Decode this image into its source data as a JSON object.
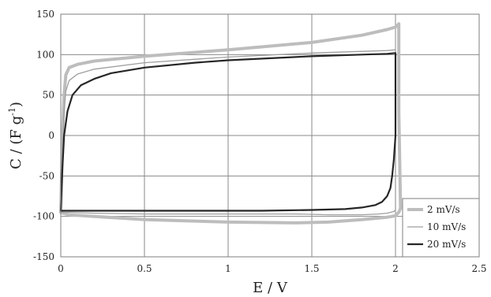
{
  "chart_data": {
    "type": "line",
    "xlabel": "E / V",
    "ylabel_main": "C / (F g",
    "ylabel_sup": "-1",
    "ylabel_close": ")",
    "xlim": [
      0,
      2.5
    ],
    "ylim": [
      -150,
      150
    ],
    "xticks": [
      0,
      0.5,
      1,
      1.5,
      2,
      2.5
    ],
    "xtick_labels": [
      "0",
      "0.5",
      "1",
      "1.5",
      "2",
      "2.5"
    ],
    "yticks": [
      -150,
      -100,
      -50,
      0,
      50,
      100,
      150
    ],
    "ytick_labels": [
      "-150",
      "-100",
      "-50",
      "0",
      "50",
      "100",
      "150"
    ],
    "grid": true,
    "legend_position": "bottom-right",
    "series": [
      {
        "name": "2 mV/s",
        "color": "#bdbdbd",
        "x": [
          0.0,
          0.01,
          0.02,
          0.03,
          0.05,
          0.1,
          0.2,
          0.5,
          1.0,
          1.5,
          1.8,
          1.95,
          2.0,
          2.02,
          2.02,
          2.03,
          2.02,
          2.01,
          2.0,
          1.98,
          1.95,
          1.9,
          1.8,
          1.6,
          1.4,
          1.0,
          0.5,
          0.2,
          0.05,
          0.01,
          0.0,
          0.0
        ],
        "y": [
          -95,
          0,
          50,
          75,
          84,
          88,
          92,
          98,
          106,
          115,
          124,
          131,
          134,
          138,
          30,
          -90,
          -95,
          -97,
          -99,
          -100,
          -101,
          -102,
          -104,
          -107,
          -108,
          -107,
          -104,
          -100,
          -98,
          -96,
          -95,
          -95
        ]
      },
      {
        "name": "10 mV/s",
        "color": "#9e9e9e",
        "x": [
          0.0,
          0.01,
          0.02,
          0.03,
          0.05,
          0.1,
          0.2,
          0.5,
          1.0,
          1.5,
          1.8,
          1.95,
          2.0,
          2.0,
          2.0,
          1.99,
          1.97,
          1.95,
          1.9,
          1.8,
          1.6,
          1.4,
          1.0,
          0.5,
          0.2,
          0.05,
          0.01,
          0.0
        ],
        "y": [
          -94,
          -20,
          30,
          55,
          68,
          76,
          82,
          90,
          97,
          102,
          104,
          105,
          106,
          20,
          -92,
          -94,
          -95,
          -96,
          -97,
          -98,
          -98,
          -97,
          -97,
          -97,
          -96,
          -95,
          -95,
          -94
        ]
      },
      {
        "name": "20 mV/s",
        "color": "#262626",
        "x": [
          0.0,
          0.01,
          0.02,
          0.04,
          0.07,
          0.12,
          0.2,
          0.3,
          0.5,
          0.8,
          1.0,
          1.5,
          1.8,
          1.95,
          2.0,
          2.0,
          2.0,
          1.99,
          1.98,
          1.97,
          1.95,
          1.92,
          1.88,
          1.8,
          1.7,
          1.5,
          1.2,
          1.0,
          0.5,
          0.2,
          0.05,
          0.01,
          0.0
        ],
        "y": [
          -93,
          -40,
          0,
          30,
          50,
          62,
          70,
          77,
          84,
          90,
          93,
          98,
          100,
          101,
          102,
          50,
          0,
          -30,
          -50,
          -65,
          -75,
          -82,
          -86,
          -89,
          -91,
          -92,
          -93,
          -93,
          -93,
          -93,
          -93,
          -93,
          -93
        ]
      }
    ]
  }
}
